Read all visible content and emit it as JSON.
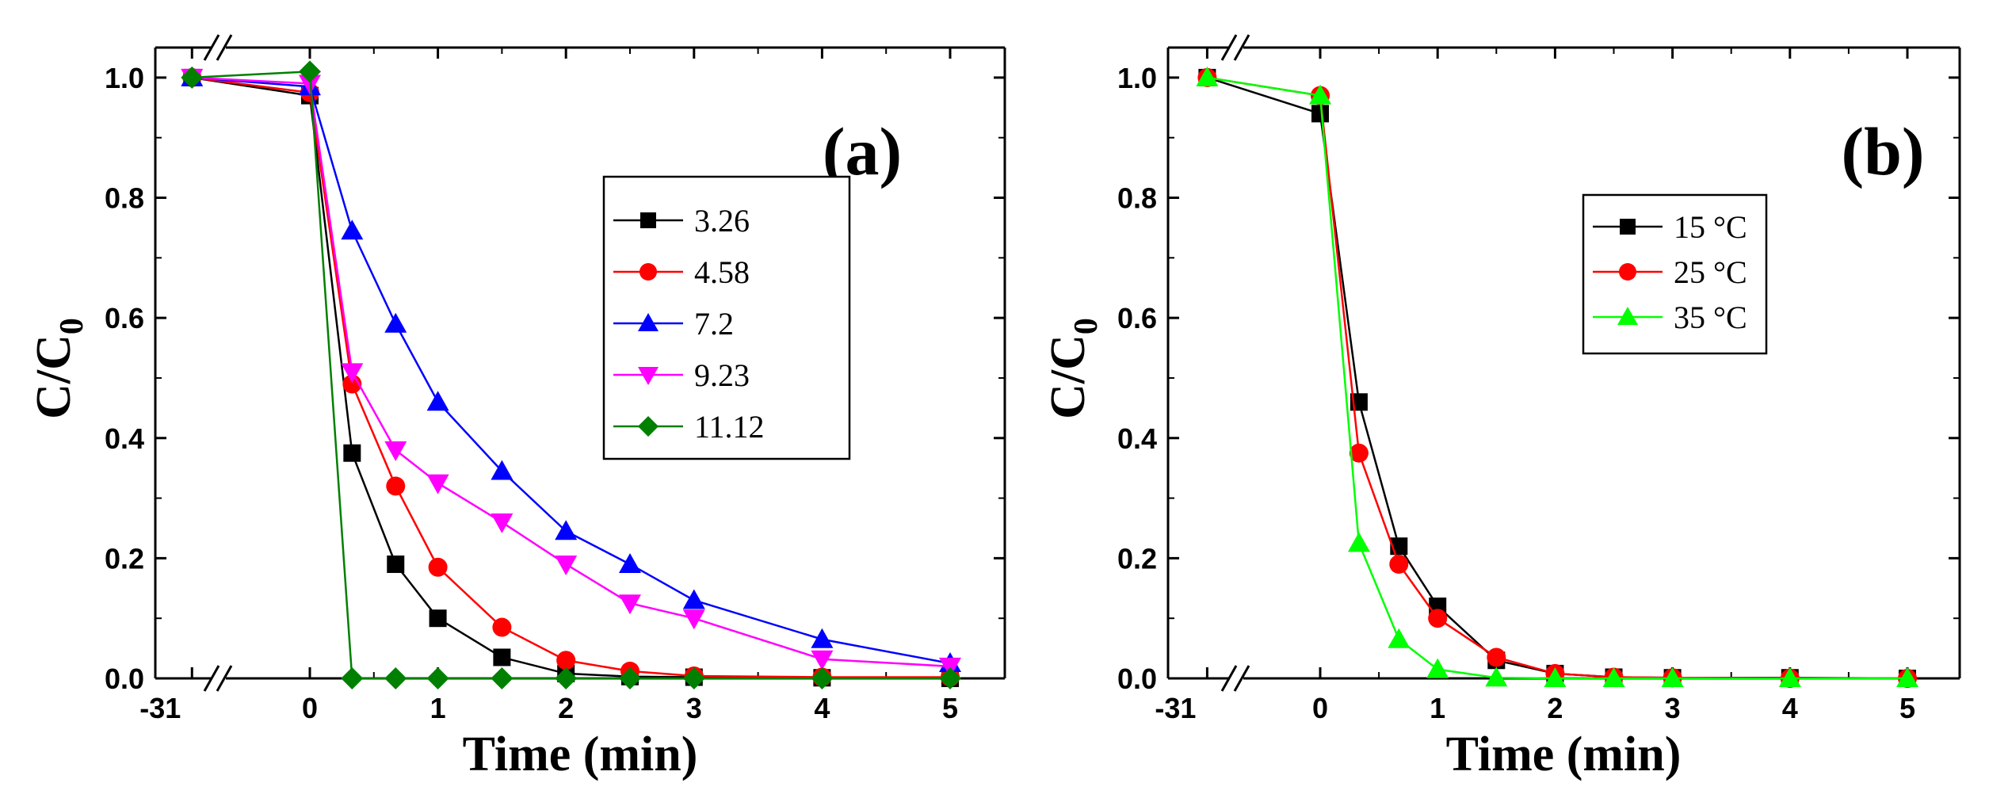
{
  "chart_data": [
    {
      "type": "line",
      "panel_label": "(a)",
      "xlabel": "Time (min)",
      "ylabel": {
        "main": "C/C",
        "sub": "0"
      },
      "x": [
        -31,
        0,
        0.33,
        0.67,
        1,
        1.5,
        2,
        2.5,
        3,
        4,
        5
      ],
      "x_tick_labels": [
        "-31",
        "0",
        "1",
        "2",
        "3",
        "4",
        "5"
      ],
      "x_tick_values": [
        -31,
        0,
        1,
        2,
        3,
        4,
        5
      ],
      "x_axis_break": true,
      "ylim": [
        0,
        1.05
      ],
      "y_ticks": [
        "0.0",
        "0.2",
        "0.4",
        "0.6",
        "0.8",
        "1.0"
      ],
      "legend": "right",
      "series": [
        {
          "name": "3.26",
          "color": "#000000",
          "marker": "square",
          "values": [
            1.0,
            0.97,
            0.375,
            0.19,
            0.1,
            0.035,
            0.008,
            0.003,
            0.002,
            0.001,
            0.0
          ]
        },
        {
          "name": "4.58",
          "color": "#ff0000",
          "marker": "circle",
          "values": [
            1.0,
            0.975,
            0.49,
            0.32,
            0.185,
            0.085,
            0.03,
            0.012,
            0.004,
            0.002,
            0.002
          ]
        },
        {
          "name": "7.2",
          "color": "#0000ff",
          "marker": "triangle-up",
          "values": [
            1.0,
            0.985,
            0.745,
            0.59,
            0.46,
            0.345,
            0.245,
            0.19,
            0.13,
            0.065,
            0.025
          ]
        },
        {
          "name": "9.23",
          "color": "#ff00ff",
          "marker": "triangle-down",
          "values": [
            1.0,
            0.99,
            0.51,
            0.38,
            0.325,
            0.26,
            0.19,
            0.125,
            0.1,
            0.032,
            0.02
          ]
        },
        {
          "name": "11.12",
          "color": "#008000",
          "marker": "diamond",
          "values": [
            1.0,
            1.01,
            0.0,
            0.0,
            0.0,
            0.0,
            0.0,
            0.0,
            0.0,
            0.0,
            0.0
          ]
        }
      ]
    },
    {
      "type": "line",
      "panel_label": "(b)",
      "xlabel": "Time (min)",
      "ylabel": {
        "main": "C/C",
        "sub": "0"
      },
      "x": [
        -31,
        0,
        0.33,
        0.67,
        1,
        1.5,
        2,
        2.5,
        3,
        4,
        5
      ],
      "x_tick_labels": [
        "-31",
        "0",
        "1",
        "2",
        "3",
        "4",
        "5"
      ],
      "x_tick_values": [
        -31,
        0,
        1,
        2,
        3,
        4,
        5
      ],
      "x_axis_break": true,
      "ylim": [
        0,
        1.05
      ],
      "y_ticks": [
        "0.0",
        "0.2",
        "0.4",
        "0.6",
        "0.8",
        "1.0"
      ],
      "legend": "upper-right",
      "series": [
        {
          "name": "15 °C",
          "color": "#000000",
          "marker": "square",
          "values": [
            1.0,
            0.94,
            0.46,
            0.22,
            0.12,
            0.03,
            0.008,
            0.002,
            0.001,
            0.001,
            0.0
          ]
        },
        {
          "name": "25 °C",
          "color": "#ff0000",
          "marker": "circle",
          "values": [
            1.0,
            0.97,
            0.375,
            0.19,
            0.1,
            0.035,
            0.008,
            0.002,
            0.001,
            0.0,
            0.0
          ]
        },
        {
          "name": "35 °C",
          "color": "#00ff00",
          "marker": "triangle-up",
          "values": [
            1.0,
            0.97,
            0.225,
            0.065,
            0.015,
            0.001,
            0.0,
            0.0,
            0.0,
            0.0,
            0.0
          ]
        }
      ]
    }
  ]
}
